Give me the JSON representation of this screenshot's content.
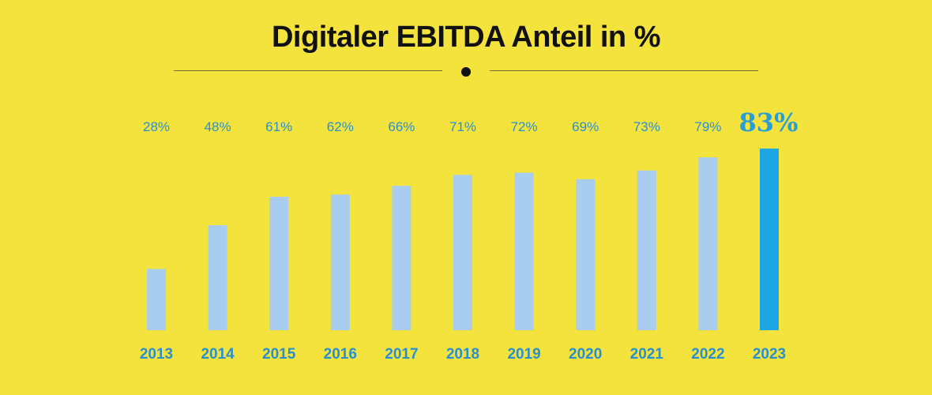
{
  "title": "Digitaler EBITDA Anteil in %",
  "colors": {
    "background": "#f4e33c",
    "bar": "#a9cdee",
    "bar_highlight": "#1da6e3",
    "label": "#2a8fd0",
    "highlight_label": "#2a9fd6"
  },
  "chart_data": {
    "type": "bar",
    "title": "Digitaler EBITDA Anteil in %",
    "categories": [
      "2013",
      "2014",
      "2015",
      "2016",
      "2017",
      "2018",
      "2019",
      "2020",
      "2021",
      "2022",
      "2023"
    ],
    "values": [
      28,
      48,
      61,
      62,
      66,
      71,
      72,
      69,
      73,
      79,
      83
    ],
    "value_labels": [
      "28%",
      "48%",
      "61%",
      "62%",
      "66%",
      "71%",
      "72%",
      "69%",
      "73%",
      "79%",
      "83%"
    ],
    "highlight_index": 10,
    "xlabel": "",
    "ylabel": "",
    "ylim": [
      0,
      100
    ],
    "grid": false,
    "legend": "none"
  }
}
